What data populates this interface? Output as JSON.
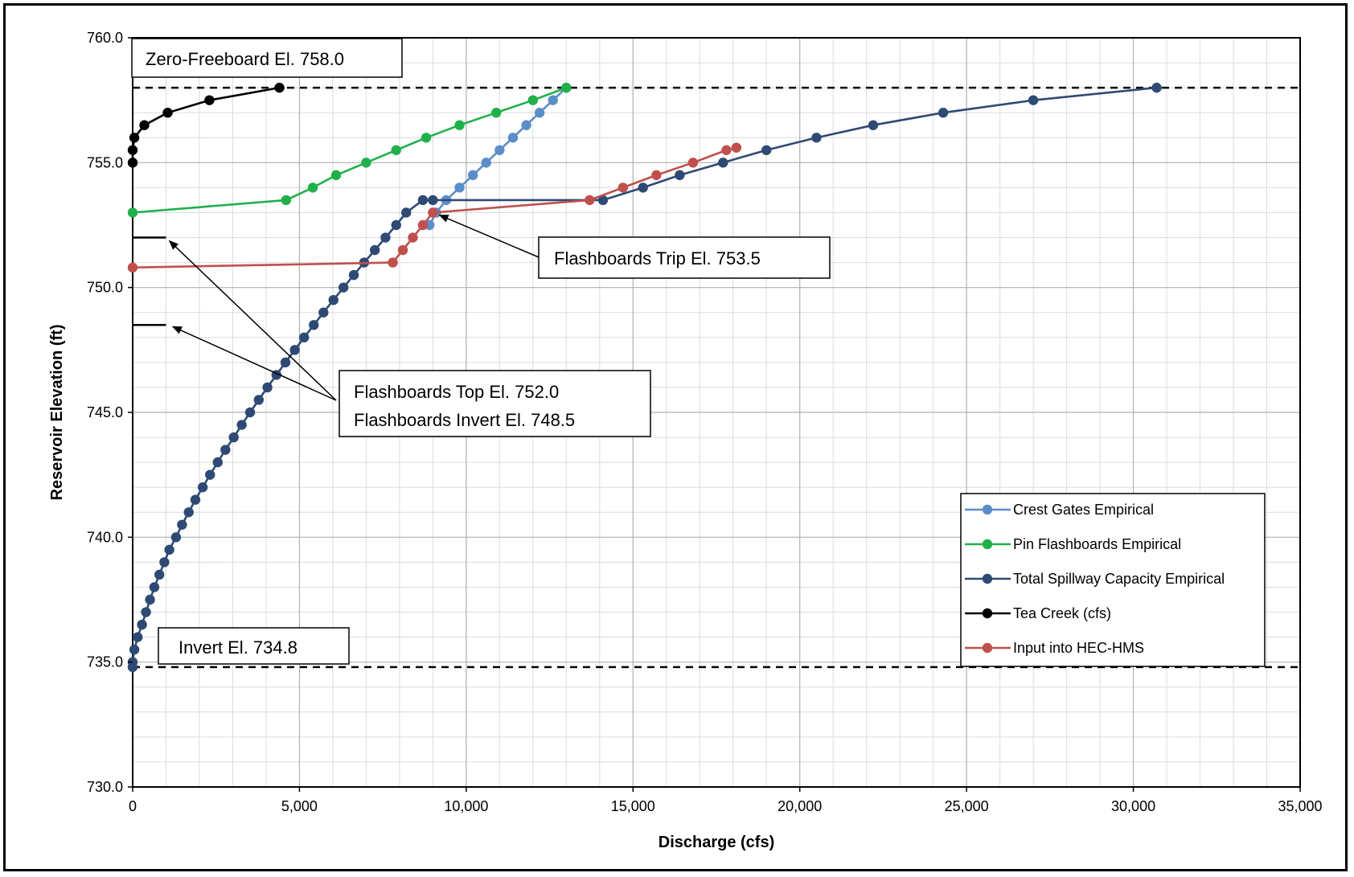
{
  "chart_data": {
    "type": "line",
    "title": "",
    "xlabel": "Discharge (cfs)",
    "ylabel": "Reservoir Elevation (ft)",
    "xlim": [
      0,
      35000
    ],
    "ylim": [
      730,
      760
    ],
    "x_ticks": [
      0,
      5000,
      10000,
      15000,
      20000,
      25000,
      30000,
      35000
    ],
    "x_tick_labels": [
      "0",
      "5,000",
      "10,000",
      "15,000",
      "20,000",
      "25,000",
      "30,000",
      "35,000"
    ],
    "y_ticks": [
      730,
      735,
      740,
      745,
      750,
      755,
      760
    ],
    "y_tick_labels": [
      "730.0",
      "735.0",
      "740.0",
      "745.0",
      "750.0",
      "755.0",
      "760.0"
    ],
    "grid": true,
    "legend_position": "lower-right",
    "series": [
      {
        "name": "Crest Gates Empirical",
        "color": "#5B8DC9",
        "points": [
          [
            8900,
            752.5
          ],
          [
            9100,
            753.0
          ],
          [
            9400,
            753.5
          ],
          [
            9800,
            754.0
          ],
          [
            10200,
            754.5
          ],
          [
            10600,
            755.0
          ],
          [
            11000,
            755.5
          ],
          [
            11400,
            756.0
          ],
          [
            11800,
            756.5
          ],
          [
            12200,
            757.0
          ],
          [
            12600,
            757.5
          ],
          [
            13000,
            758.0
          ]
        ]
      },
      {
        "name": "Pin Flashboards Empirical",
        "color": "#1FB04B",
        "points": [
          [
            0,
            753.0
          ],
          [
            4600,
            753.5
          ],
          [
            5400,
            754.0
          ],
          [
            6100,
            754.5
          ],
          [
            7000,
            755.0
          ],
          [
            7900,
            755.5
          ],
          [
            8800,
            756.0
          ],
          [
            9800,
            756.5
          ],
          [
            10900,
            757.0
          ],
          [
            12000,
            757.5
          ],
          [
            13000,
            758.0
          ]
        ]
      },
      {
        "name": "Total Spillway Capacity Empirical",
        "color": "#2E4A74",
        "points": [
          [
            0,
            734.8
          ],
          [
            0,
            735.0
          ],
          [
            50,
            735.5
          ],
          [
            150,
            736.0
          ],
          [
            280,
            736.5
          ],
          [
            400,
            737.0
          ],
          [
            520,
            737.5
          ],
          [
            650,
            738.0
          ],
          [
            800,
            738.5
          ],
          [
            950,
            739.0
          ],
          [
            1100,
            739.5
          ],
          [
            1300,
            740.0
          ],
          [
            1480,
            740.5
          ],
          [
            1680,
            741.0
          ],
          [
            1880,
            741.5
          ],
          [
            2100,
            742.0
          ],
          [
            2320,
            742.5
          ],
          [
            2550,
            743.0
          ],
          [
            2780,
            743.5
          ],
          [
            3030,
            744.0
          ],
          [
            3270,
            744.5
          ],
          [
            3520,
            745.0
          ],
          [
            3780,
            745.5
          ],
          [
            4040,
            746.0
          ],
          [
            4310,
            746.5
          ],
          [
            4580,
            747.0
          ],
          [
            4860,
            747.5
          ],
          [
            5140,
            748.0
          ],
          [
            5430,
            748.5
          ],
          [
            5720,
            749.0
          ],
          [
            6020,
            749.5
          ],
          [
            6320,
            750.0
          ],
          [
            6630,
            750.5
          ],
          [
            6940,
            751.0
          ],
          [
            7260,
            751.5
          ],
          [
            7580,
            752.0
          ],
          [
            7900,
            752.5
          ],
          [
            8200,
            753.0
          ],
          [
            8700,
            753.5
          ],
          [
            9000,
            753.5
          ],
          [
            14100,
            753.5
          ],
          [
            15300,
            754.0
          ],
          [
            16400,
            754.5
          ],
          [
            17700,
            755.0
          ],
          [
            19000,
            755.5
          ],
          [
            20500,
            756.0
          ],
          [
            22200,
            756.5
          ],
          [
            24300,
            757.0
          ],
          [
            27000,
            757.5
          ],
          [
            30700,
            758.0
          ]
        ]
      },
      {
        "name": "Tea Creek (cfs)",
        "color": "#000000",
        "points": [
          [
            0,
            755.0
          ],
          [
            0,
            755.5
          ],
          [
            50,
            756.0
          ],
          [
            350,
            756.5
          ],
          [
            1050,
            757.0
          ],
          [
            2300,
            757.5
          ],
          [
            4400,
            758.0
          ]
        ]
      },
      {
        "name": "Input into HEC-HMS",
        "color": "#C0504D",
        "points": [
          [
            0,
            750.8
          ],
          [
            7800,
            751.0
          ],
          [
            8100,
            751.5
          ],
          [
            8400,
            752.0
          ],
          [
            8700,
            752.5
          ],
          [
            9000,
            753.0
          ],
          [
            13700,
            753.5
          ],
          [
            14700,
            754.0
          ],
          [
            15700,
            754.5
          ],
          [
            16800,
            755.0
          ],
          [
            17800,
            755.5
          ],
          [
            18100,
            755.6
          ]
        ]
      }
    ],
    "reference_lines": [
      {
        "name": "zero-freeboard-line",
        "y": 758.0
      },
      {
        "name": "invert-line",
        "y": 734.8
      }
    ],
    "flashboard_marks": [
      {
        "name": "flashboards-top-mark",
        "y": 752.0,
        "x_range": [
          0,
          1000
        ]
      },
      {
        "name": "flashboards-invert-mark",
        "y": 748.5,
        "x_range": [
          0,
          1000
        ]
      }
    ],
    "annotations": {
      "zero_freeboard": "Zero-Freeboard El. 758.0",
      "invert": "Invert El. 734.8",
      "flashboards_trip": "Flashboards Trip El. 753.5",
      "flashboards_top": "Flashboards Top El. 752.0",
      "flashboards_invert": "Flashboards Invert El. 748.5"
    }
  }
}
